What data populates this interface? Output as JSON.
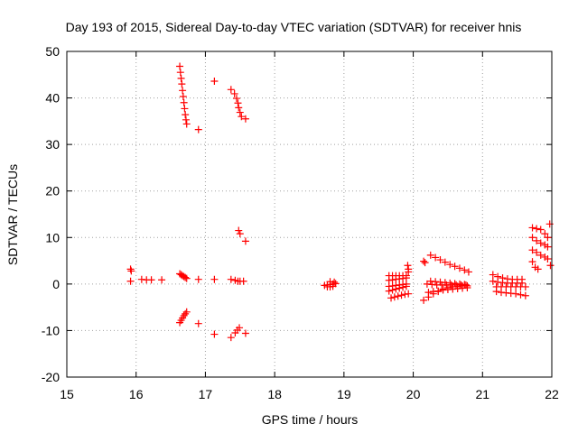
{
  "chart_data": {
    "type": "scatter",
    "title": "Day 193 of 2015, Sidereal Day-to-day VTEC variation (SDTVAR) for receiver hnis",
    "xlabel": "GPS time / hours",
    "ylabel": "SDTVAR / TECUs",
    "xlim": [
      15,
      22
    ],
    "ylim": [
      -20,
      50
    ],
    "x_ticks": [
      "15",
      "16",
      "17",
      "18",
      "19",
      "20",
      "21",
      "22"
    ],
    "y_ticks": [
      "-20",
      "-10",
      "0",
      "10",
      "20",
      "30",
      "40",
      "50"
    ],
    "grid": true,
    "marker": "+",
    "color": "#ff0000",
    "series": [
      {
        "name": "SDTVAR",
        "points": [
          [
            15.92,
            3.2
          ],
          [
            15.93,
            2.8
          ],
          [
            15.92,
            0.6
          ],
          [
            16.08,
            1.0
          ],
          [
            16.15,
            0.9
          ],
          [
            16.22,
            0.9
          ],
          [
            16.37,
            0.9
          ],
          [
            16.63,
            46.8
          ],
          [
            16.64,
            45.5
          ],
          [
            16.65,
            44.2
          ],
          [
            16.66,
            43.0
          ],
          [
            16.67,
            41.6
          ],
          [
            16.68,
            40.3
          ],
          [
            16.69,
            39.0
          ],
          [
            16.7,
            37.7
          ],
          [
            16.71,
            36.4
          ],
          [
            16.72,
            35.3
          ],
          [
            16.73,
            34.4
          ],
          [
            16.63,
            2.2
          ],
          [
            16.65,
            2.0
          ],
          [
            16.67,
            1.8
          ],
          [
            16.69,
            1.6
          ],
          [
            16.71,
            1.4
          ],
          [
            16.73,
            1.2
          ],
          [
            16.63,
            -8.3
          ],
          [
            16.65,
            -7.8
          ],
          [
            16.67,
            -7.3
          ],
          [
            16.69,
            -6.8
          ],
          [
            16.71,
            -6.4
          ],
          [
            16.73,
            -6.0
          ],
          [
            16.9,
            33.2
          ],
          [
            16.9,
            1.0
          ],
          [
            16.9,
            -8.5
          ],
          [
            17.13,
            43.6
          ],
          [
            17.13,
            1.0
          ],
          [
            17.13,
            -10.8
          ],
          [
            17.37,
            41.8
          ],
          [
            17.42,
            40.9
          ],
          [
            17.45,
            39.9
          ],
          [
            17.47,
            38.9
          ],
          [
            17.48,
            37.9
          ],
          [
            17.5,
            36.9
          ],
          [
            17.52,
            36.0
          ],
          [
            17.58,
            35.5
          ],
          [
            17.37,
            1.0
          ],
          [
            17.43,
            0.8
          ],
          [
            17.47,
            0.6
          ],
          [
            17.5,
            0.6
          ],
          [
            17.55,
            0.6
          ],
          [
            17.37,
            -11.5
          ],
          [
            17.43,
            -10.5
          ],
          [
            17.46,
            -9.9
          ],
          [
            17.49,
            -9.4
          ],
          [
            17.58,
            -10.6
          ],
          [
            17.48,
            11.5
          ],
          [
            17.5,
            10.8
          ],
          [
            17.58,
            9.2
          ],
          [
            18.72,
            -0.3
          ],
          [
            18.76,
            -0.2
          ],
          [
            18.8,
            -0.1
          ],
          [
            18.84,
            0.0
          ],
          [
            18.88,
            0.1
          ],
          [
            18.76,
            -0.6
          ],
          [
            18.8,
            -0.6
          ],
          [
            18.84,
            -0.5
          ],
          [
            18.8,
            0.5
          ],
          [
            18.86,
            0.4
          ],
          [
            19.65,
            1.8
          ],
          [
            19.7,
            1.8
          ],
          [
            19.75,
            1.8
          ],
          [
            19.8,
            1.8
          ],
          [
            19.85,
            1.8
          ],
          [
            19.9,
            1.8
          ],
          [
            19.65,
            0.8
          ],
          [
            19.7,
            0.9
          ],
          [
            19.75,
            1.0
          ],
          [
            19.8,
            1.1
          ],
          [
            19.85,
            1.2
          ],
          [
            19.9,
            1.3
          ],
          [
            19.65,
            -0.5
          ],
          [
            19.7,
            -0.4
          ],
          [
            19.75,
            -0.3
          ],
          [
            19.8,
            -0.2
          ],
          [
            19.85,
            -0.1
          ],
          [
            19.9,
            0.0
          ],
          [
            19.65,
            -1.5
          ],
          [
            19.7,
            -1.3
          ],
          [
            19.75,
            -1.1
          ],
          [
            19.8,
            -0.9
          ],
          [
            19.85,
            -0.7
          ],
          [
            19.9,
            -0.5
          ],
          [
            19.68,
            -3.0
          ],
          [
            19.73,
            -2.8
          ],
          [
            19.78,
            -2.6
          ],
          [
            19.83,
            -2.4
          ],
          [
            19.88,
            -2.2
          ],
          [
            19.93,
            -2.1
          ],
          [
            19.92,
            4.0
          ],
          [
            19.93,
            3.2
          ],
          [
            19.93,
            2.6
          ],
          [
            20.15,
            4.9
          ],
          [
            20.17,
            4.6
          ],
          [
            20.25,
            6.2
          ],
          [
            20.32,
            5.7
          ],
          [
            20.39,
            5.2
          ],
          [
            20.46,
            4.7
          ],
          [
            20.53,
            4.2
          ],
          [
            20.6,
            3.8
          ],
          [
            20.67,
            3.4
          ],
          [
            20.74,
            3.0
          ],
          [
            20.8,
            2.6
          ],
          [
            20.15,
            -3.5
          ],
          [
            20.22,
            -2.8
          ],
          [
            20.29,
            -2.1
          ],
          [
            20.36,
            -1.6
          ],
          [
            20.43,
            -1.1
          ],
          [
            20.5,
            -0.8
          ],
          [
            20.57,
            -0.6
          ],
          [
            20.64,
            -0.5
          ],
          [
            20.71,
            -0.4
          ],
          [
            20.78,
            -0.4
          ],
          [
            20.2,
            0.0
          ],
          [
            20.27,
            -0.1
          ],
          [
            20.34,
            -0.2
          ],
          [
            20.41,
            -0.2
          ],
          [
            20.48,
            -0.2
          ],
          [
            20.55,
            -0.2
          ],
          [
            20.62,
            -0.2
          ],
          [
            20.69,
            -0.2
          ],
          [
            20.76,
            -0.2
          ],
          [
            20.22,
            -1.8
          ],
          [
            20.29,
            -1.6
          ],
          [
            20.36,
            -1.5
          ],
          [
            20.43,
            -1.3
          ],
          [
            20.5,
            -1.2
          ],
          [
            20.57,
            -1.1
          ],
          [
            20.64,
            -1.0
          ],
          [
            20.71,
            -0.9
          ],
          [
            20.78,
            -0.8
          ],
          [
            20.25,
            0.6
          ],
          [
            20.32,
            0.5
          ],
          [
            20.39,
            0.4
          ],
          [
            20.46,
            0.3
          ],
          [
            20.53,
            0.2
          ],
          [
            20.6,
            0.1
          ],
          [
            20.67,
            0.0
          ],
          [
            20.74,
            -0.1
          ],
          [
            21.15,
            2.0
          ],
          [
            21.22,
            1.6
          ],
          [
            21.29,
            1.3
          ],
          [
            21.36,
            1.1
          ],
          [
            21.43,
            1.0
          ],
          [
            21.5,
            1.0
          ],
          [
            21.57,
            1.0
          ],
          [
            21.15,
            0.6
          ],
          [
            21.22,
            0.4
          ],
          [
            21.29,
            0.3
          ],
          [
            21.36,
            0.2
          ],
          [
            21.43,
            0.2
          ],
          [
            21.5,
            0.2
          ],
          [
            21.57,
            0.2
          ],
          [
            21.2,
            -0.6
          ],
          [
            21.27,
            -0.6
          ],
          [
            21.34,
            -0.6
          ],
          [
            21.41,
            -0.6
          ],
          [
            21.48,
            -0.6
          ],
          [
            21.55,
            -0.6
          ],
          [
            21.62,
            -0.6
          ],
          [
            21.2,
            -1.6
          ],
          [
            21.27,
            -1.8
          ],
          [
            21.34,
            -1.9
          ],
          [
            21.41,
            -2.0
          ],
          [
            21.48,
            -2.1
          ],
          [
            21.55,
            -2.3
          ],
          [
            21.62,
            -2.5
          ],
          [
            21.72,
            12.1
          ],
          [
            21.78,
            11.9
          ],
          [
            21.84,
            11.7
          ],
          [
            21.9,
            10.8
          ],
          [
            21.94,
            10.0
          ],
          [
            21.72,
            10.0
          ],
          [
            21.78,
            9.3
          ],
          [
            21.84,
            8.8
          ],
          [
            21.9,
            8.4
          ],
          [
            21.94,
            8.0
          ],
          [
            21.72,
            7.3
          ],
          [
            21.78,
            6.8
          ],
          [
            21.84,
            6.2
          ],
          [
            21.9,
            5.8
          ],
          [
            21.94,
            5.4
          ],
          [
            21.72,
            4.8
          ],
          [
            21.76,
            3.6
          ],
          [
            21.8,
            3.2
          ],
          [
            21.97,
            12.9
          ],
          [
            21.98,
            4.0
          ]
        ]
      }
    ]
  }
}
